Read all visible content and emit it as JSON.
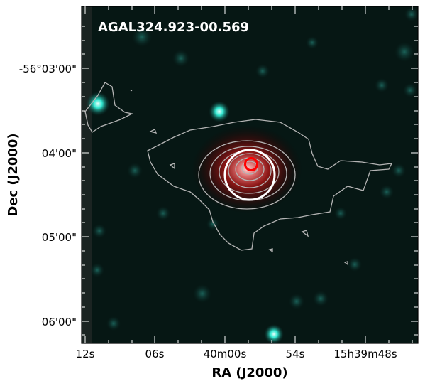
{
  "figure": {
    "title": "AGAL324.923-00.569",
    "xlabel": "RA (J2000)",
    "ylabel": "Dec (J2000)",
    "x_ticks": [
      "12s",
      "06s",
      "40m00s",
      "54s",
      "15h39m48s"
    ],
    "y_ticks": [
      "-56°03'00\"",
      "04'00\"",
      "05'00\"",
      "06'00\""
    ],
    "colors": {
      "background": "#041512",
      "cyan_source": "#37ffe6",
      "red_emission": "#c21010",
      "contour": "#b4b4b4",
      "beam_circle": "#ffffff",
      "marker_circle": "#ff0000",
      "frame": "#000000"
    },
    "icons": [
      "large-white-circle",
      "small-red-circle",
      "contour-lines",
      "cyan-point-sources"
    ]
  }
}
